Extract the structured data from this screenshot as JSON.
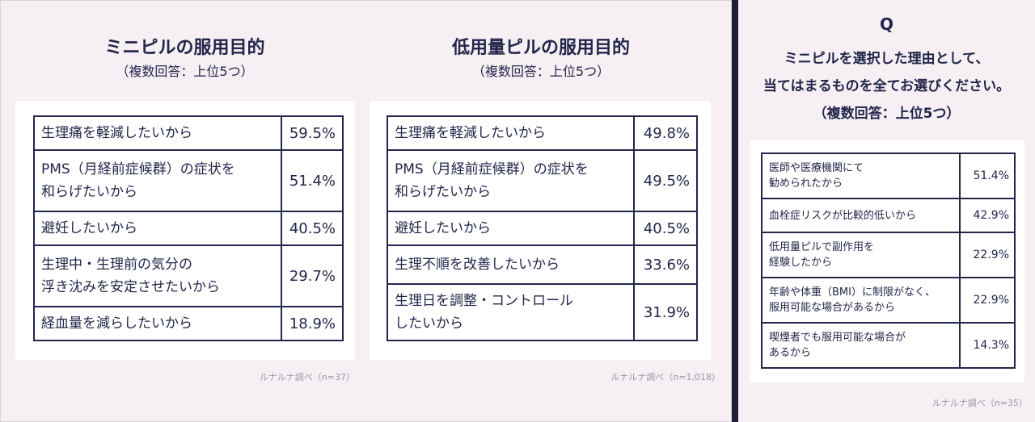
{
  "left_chart": {
    "title": "ミニピルの服用目的",
    "subtitle": "（複数回答：上位5つ）",
    "rows": [
      {
        "reason": "生理痛を軽減したいから",
        "pct": "59.5%"
      },
      {
        "reason": "PMS（月経前症候群）の症状を\n和らげたいから",
        "pct": "51.4%"
      },
      {
        "reason": "避妊したいから",
        "pct": "40.5%"
      },
      {
        "reason": "生理中・生理前の気分の\n浮き沈みを安定させたいから",
        "pct": "29.7%"
      },
      {
        "reason": "経血量を減らしたいから",
        "pct": "18.9%"
      }
    ],
    "source": "ルナルナ調べ（n=37）"
  },
  "mid_chart": {
    "title": "低用量ピルの服用目的",
    "subtitle": "（複数回答：上位5つ）",
    "rows": [
      {
        "reason": "生理痛を軽減したいから",
        "pct": "49.8%"
      },
      {
        "reason": "PMS（月経前症候群）の症状を\n和らげたいから",
        "pct": "49.5%"
      },
      {
        "reason": "避妊したいから",
        "pct": "40.5%"
      },
      {
        "reason": "生理不順を改善したいから",
        "pct": "33.6%"
      },
      {
        "reason": "生理日を調整・コントロール\nしたいから",
        "pct": "31.9%"
      }
    ],
    "source": "ルナルナ調べ（n=1,018）"
  },
  "right_chart": {
    "q_letter": "Q",
    "question_lines": [
      "ミニピルを選択した理由として、",
      "当てはまるものを全てお選びください。",
      "（複数回答：上位5つ）"
    ],
    "rows": [
      {
        "reason": "医師や医療機関にて\n勧められたから",
        "pct": "51.4%"
      },
      {
        "reason": "血栓症リスクが比較的低いから",
        "pct": "42.9%"
      },
      {
        "reason": "低用量ピルで副作用を\n経験したから",
        "pct": "22.9%"
      },
      {
        "reason": "年齢や体重（BMI）に制限がなく、\n服用可能な場合があるから",
        "pct": "22.9%"
      },
      {
        "reason": "喫煙者でも服用可能な場合が\nあるから",
        "pct": "14.3%"
      }
    ],
    "source": "ルナルナ調べ（n=35）"
  }
}
